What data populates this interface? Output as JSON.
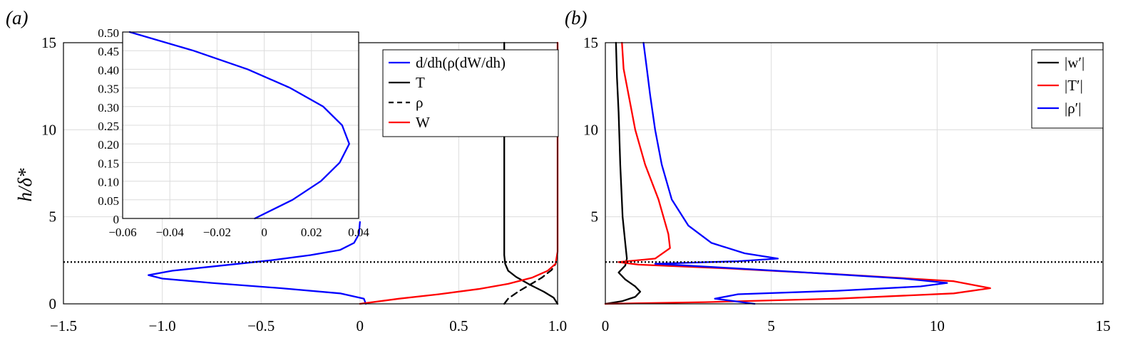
{
  "chart_data": [
    {
      "panel_label": "(a)",
      "type": "line",
      "ylabel": "h/δ*",
      "xlim": [
        -1.5,
        1.0
      ],
      "ylim": [
        0,
        15
      ],
      "xticks": [
        "−1.5",
        "−1.0",
        "−0.5",
        "0",
        "0.5",
        "1.0"
      ],
      "yticks": [
        "0",
        "5",
        "10",
        "15"
      ],
      "grid": true,
      "reference_line_y": 2.4,
      "legend": {
        "placement": "top-right",
        "entries": [
          {
            "label": "d/dh(ρ(dW/dh)",
            "color": "#0000ff",
            "dash": "solid"
          },
          {
            "label": "T",
            "color": "#000000",
            "dash": "solid"
          },
          {
            "label": "ρ",
            "color": "#000000",
            "dash": "dashed"
          },
          {
            "label": "W",
            "color": "#ff0000",
            "dash": "solid"
          }
        ]
      },
      "series": [
        {
          "key": "blue",
          "color": "#0000ff",
          "dash": "solid",
          "points": [
            [
              0.03,
              0.0
            ],
            [
              0.02,
              0.3
            ],
            [
              -0.1,
              0.6
            ],
            [
              -0.4,
              0.9
            ],
            [
              -0.75,
              1.2
            ],
            [
              -1.0,
              1.45
            ],
            [
              -1.07,
              1.65
            ],
            [
              -0.95,
              1.9
            ],
            [
              -0.7,
              2.2
            ],
            [
              -0.45,
              2.5
            ],
            [
              -0.25,
              2.8
            ],
            [
              -0.1,
              3.1
            ],
            [
              -0.03,
              3.5
            ],
            [
              -0.005,
              4.0
            ],
            [
              0.0,
              4.7
            ]
          ]
        },
        {
          "key": "T",
          "color": "#000000",
          "dash": "solid",
          "points": [
            [
              1.0,
              0.0
            ],
            [
              0.98,
              0.35
            ],
            [
              0.93,
              0.7
            ],
            [
              0.86,
              1.1
            ],
            [
              0.79,
              1.55
            ],
            [
              0.75,
              1.9
            ],
            [
              0.735,
              2.3
            ],
            [
              0.73,
              2.8
            ],
            [
              0.73,
              4
            ],
            [
              0.73,
              8
            ],
            [
              0.73,
              15
            ]
          ]
        },
        {
          "key": "rho",
          "color": "#000000",
          "dash": "dashed",
          "points": [
            [
              0.73,
              0.0
            ],
            [
              0.75,
              0.3
            ],
            [
              0.8,
              0.7
            ],
            [
              0.86,
              1.1
            ],
            [
              0.92,
              1.5
            ],
            [
              0.97,
              1.95
            ],
            [
              0.99,
              2.3
            ]
          ]
        },
        {
          "key": "W",
          "color": "#ff0000",
          "dash": "solid",
          "points": [
            [
              0.0,
              0.0
            ],
            [
              0.2,
              0.3
            ],
            [
              0.4,
              0.55
            ],
            [
              0.6,
              0.85
            ],
            [
              0.75,
              1.15
            ],
            [
              0.87,
              1.5
            ],
            [
              0.95,
              1.9
            ],
            [
              0.99,
              2.3
            ],
            [
              1.0,
              3.0
            ],
            [
              1.0,
              15
            ]
          ]
        }
      ],
      "inset": {
        "xlim": [
          -0.06,
          0.04
        ],
        "ylim": [
          0,
          0.5
        ],
        "xticks": [
          "−0.06",
          "−0.04",
          "−0.02",
          "0",
          "0.02",
          "0.04"
        ],
        "yticks": [
          "0",
          "0.05",
          "0.10",
          "0.15",
          "0.20",
          "0.25",
          "0.30",
          "0.35",
          "0.40",
          "0.45",
          "0.50"
        ],
        "grid": true,
        "series": [
          {
            "key": "inset-blue",
            "color": "#0000ff",
            "dash": "solid",
            "points": [
              [
                -0.004,
                0.0
              ],
              [
                0.012,
                0.05
              ],
              [
                0.024,
                0.1
              ],
              [
                0.032,
                0.15
              ],
              [
                0.036,
                0.2
              ],
              [
                0.033,
                0.25
              ],
              [
                0.025,
                0.3
              ],
              [
                0.011,
                0.35
              ],
              [
                -0.007,
                0.4
              ],
              [
                -0.03,
                0.45
              ],
              [
                -0.057,
                0.5
              ]
            ]
          }
        ]
      }
    },
    {
      "panel_label": "(b)",
      "type": "line",
      "xlim": [
        0,
        15
      ],
      "ylim": [
        0,
        15
      ],
      "xticks": [
        "0",
        "5",
        "10",
        "15"
      ],
      "yticks": [
        "5",
        "10",
        "15"
      ],
      "grid": true,
      "reference_line_y": 2.4,
      "legend": {
        "placement": "top-right",
        "entries": [
          {
            "label": "|w′|",
            "color": "#000000",
            "dash": "solid"
          },
          {
            "label": "|T′|",
            "color": "#ff0000",
            "dash": "solid"
          },
          {
            "label": "|ρ′|",
            "color": "#0000ff",
            "dash": "solid"
          }
        ]
      },
      "series": [
        {
          "key": "w",
          "color": "#000000",
          "dash": "solid",
          "points": [
            [
              0.0,
              0.0
            ],
            [
              0.5,
              0.15
            ],
            [
              0.9,
              0.4
            ],
            [
              1.05,
              0.7
            ],
            [
              0.9,
              1.0
            ],
            [
              0.6,
              1.4
            ],
            [
              0.4,
              1.8
            ],
            [
              0.6,
              2.2
            ],
            [
              0.65,
              2.6
            ],
            [
              0.6,
              3.5
            ],
            [
              0.52,
              5
            ],
            [
              0.45,
              8
            ],
            [
              0.4,
              11
            ],
            [
              0.35,
              13
            ],
            [
              0.32,
              15
            ]
          ]
        },
        {
          "key": "T",
          "color": "#ff0000",
          "dash": "solid",
          "points": [
            [
              0.0,
              0.0
            ],
            [
              3.0,
              0.1
            ],
            [
              7.0,
              0.3
            ],
            [
              10.5,
              0.6
            ],
            [
              11.6,
              0.9
            ],
            [
              10.5,
              1.3
            ],
            [
              7.0,
              1.7
            ],
            [
              3.5,
              2.05
            ],
            [
              1.0,
              2.25
            ],
            [
              0.4,
              2.4
            ],
            [
              1.5,
              2.6
            ],
            [
              1.95,
              3.2
            ],
            [
              1.9,
              4.0
            ],
            [
              1.6,
              6.0
            ],
            [
              1.2,
              8.0
            ],
            [
              0.9,
              10.0
            ],
            [
              0.7,
              12.0
            ],
            [
              0.55,
              13.5
            ],
            [
              0.5,
              15
            ]
          ]
        },
        {
          "key": "rho",
          "color": "#0000ff",
          "dash": "solid",
          "points": [
            [
              4.5,
              0.0
            ],
            [
              3.3,
              0.3
            ],
            [
              4.0,
              0.55
            ],
            [
              7.0,
              0.75
            ],
            [
              9.5,
              1.0
            ],
            [
              10.3,
              1.2
            ],
            [
              9.0,
              1.45
            ],
            [
              6.5,
              1.75
            ],
            [
              3.8,
              2.05
            ],
            [
              1.5,
              2.3
            ],
            [
              4.0,
              2.45
            ],
            [
              5.2,
              2.6
            ],
            [
              4.2,
              2.9
            ],
            [
              3.2,
              3.5
            ],
            [
              2.5,
              4.5
            ],
            [
              2.0,
              6.0
            ],
            [
              1.7,
              8.0
            ],
            [
              1.5,
              10.0
            ],
            [
              1.35,
              12.0
            ],
            [
              1.25,
              13.5
            ],
            [
              1.15,
              15
            ]
          ]
        }
      ]
    }
  ]
}
